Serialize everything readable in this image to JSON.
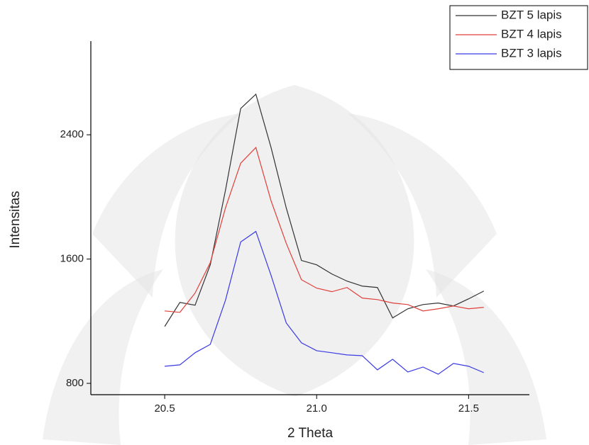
{
  "chart_data": {
    "type": "line",
    "x_label": "2 Theta",
    "y_label": "Intensitas",
    "x": [
      20.5,
      20.55,
      20.6,
      20.65,
      20.7,
      20.75,
      20.8,
      20.85,
      20.9,
      20.95,
      21.0,
      21.05,
      21.1,
      21.15,
      21.2,
      21.25,
      21.3,
      21.35,
      21.4,
      21.45,
      21.5,
      21.55
    ],
    "series": [
      {
        "name": "BZT 5 lapis",
        "color": "#333333",
        "values": [
          1166,
          1321,
          1303,
          1563,
          2043,
          2569,
          2661,
          2318,
          1929,
          1591,
          1563,
          1504,
          1458,
          1426,
          1417,
          1221,
          1280,
          1307,
          1317,
          1298,
          1344,
          1394
        ]
      },
      {
        "name": "BZT 4 lapis",
        "color": "#e0403a",
        "values": [
          1266,
          1257,
          1381,
          1577,
          1929,
          2217,
          2318,
          1975,
          1701,
          1467,
          1413,
          1390,
          1417,
          1349,
          1339,
          1317,
          1307,
          1266,
          1280,
          1298,
          1280,
          1289
        ]
      },
      {
        "name": "BZT 3 lapis",
        "color": "#3a3ae6",
        "values": [
          910,
          919,
          997,
          1051,
          1335,
          1710,
          1778,
          1495,
          1189,
          1061,
          1010,
          997,
          983,
          978,
          887,
          955,
          873,
          905,
          859,
          928,
          910,
          869
        ]
      }
    ],
    "xlim": [
      20.257,
      21.7
    ],
    "xticks": [
      20.5,
      {
        "value": 21,
        "label": "21.0"
      },
      21.5
    ],
    "ylim": [
      727,
      3003
    ],
    "yticks": [
      800,
      1600,
      2400
    ],
    "grid": false,
    "legend": "top-right"
  }
}
